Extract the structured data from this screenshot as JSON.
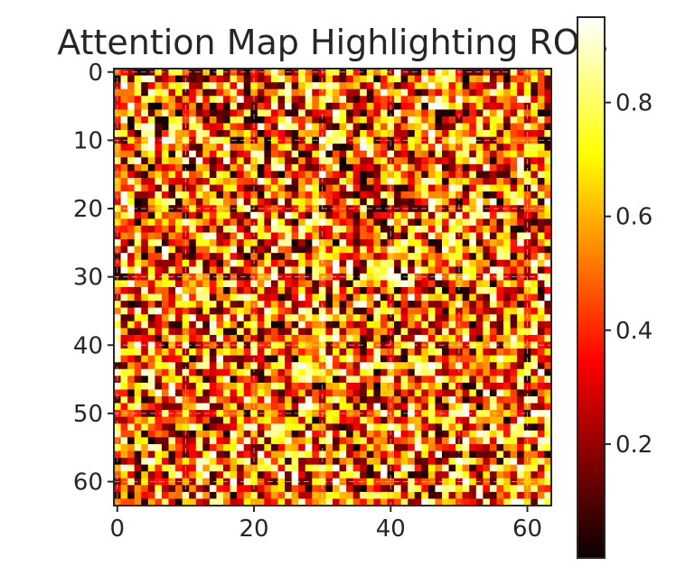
{
  "chart_data": {
    "type": "heatmap",
    "title": "Attention Map Highlighting ROIs",
    "xlabel": "",
    "ylabel": "",
    "grid_size": [
      64,
      64
    ],
    "x_range": [
      0,
      63
    ],
    "y_range": [
      0,
      63
    ],
    "x_ticks": [
      "0",
      "20",
      "40",
      "60"
    ],
    "y_ticks": [
      "0",
      "10",
      "20",
      "30",
      "40",
      "50",
      "60"
    ],
    "value_range": [
      0,
      0.95
    ],
    "colormap": "hot",
    "colorbar_ticks": [
      "0.2",
      "0.4",
      "0.6",
      "0.8"
    ],
    "grid": true
  }
}
